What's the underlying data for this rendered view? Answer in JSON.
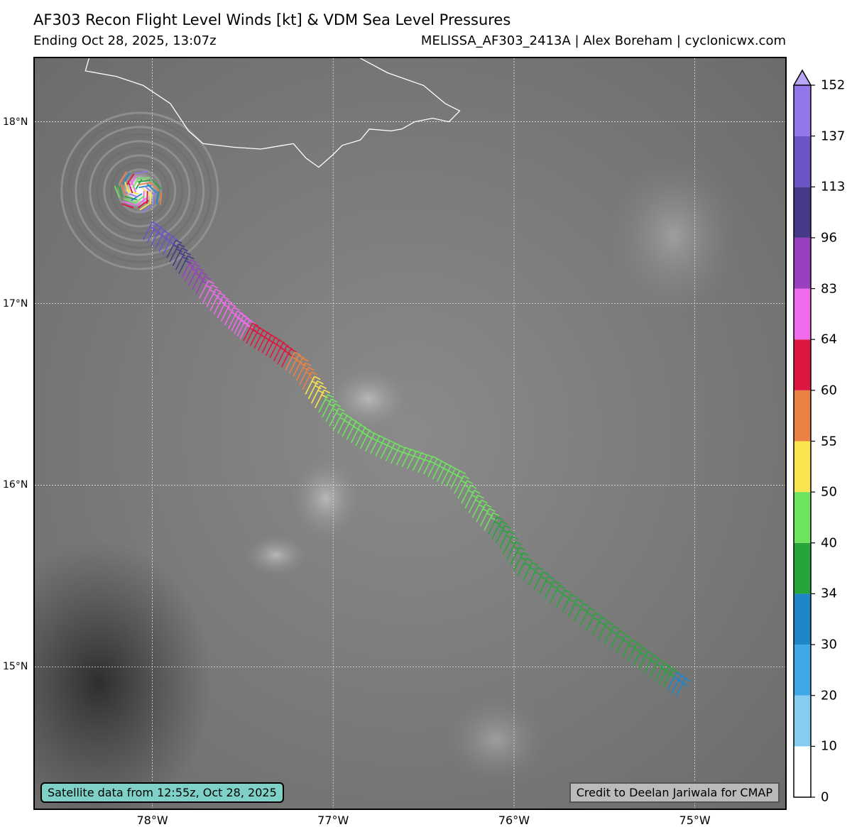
{
  "header": {
    "title": "AF303 Recon Flight Level Winds [kt] & VDM Sea Level Pressures",
    "subtitle": "Ending Oct 28, 2025, 13:07z",
    "credit": "MELISSA_AF303_2413A | Alex Boreham | cyclonicwx.com"
  },
  "map": {
    "extent": {
      "lon_min": -78.65,
      "lon_max": -74.5,
      "lat_min": 14.22,
      "lat_max": 18.35
    },
    "x_ticks": [
      {
        "lon": -78,
        "label": "78°W"
      },
      {
        "lon": -77,
        "label": "77°W"
      },
      {
        "lon": -76,
        "label": "76°W"
      },
      {
        "lon": -75,
        "label": "75°W"
      }
    ],
    "y_ticks": [
      {
        "lat": 18,
        "label": "18°N"
      },
      {
        "lat": 17,
        "label": "17°N"
      },
      {
        "lat": 16,
        "label": "16°N"
      },
      {
        "lat": 15,
        "label": "15°N"
      }
    ],
    "satellite_note": "Satellite data from 12:55z, Oct 28, 2025",
    "cmap_note": "Credit to Deelan Jariwala for CMAP",
    "eye": {
      "lon": -78.07,
      "lat": 17.62
    },
    "coastline_jamaica": [
      [
        -78.35,
        18.35
      ],
      [
        -78.37,
        18.28
      ],
      [
        -78.2,
        18.25
      ],
      [
        -78.05,
        18.2
      ],
      [
        -77.9,
        18.1
      ],
      [
        -77.8,
        17.95
      ],
      [
        -77.72,
        17.88
      ],
      [
        -77.55,
        17.86
      ],
      [
        -77.4,
        17.85
      ],
      [
        -77.22,
        17.88
      ],
      [
        -77.15,
        17.8
      ],
      [
        -77.08,
        17.75
      ],
      [
        -77.0,
        17.82
      ],
      [
        -76.95,
        17.87
      ],
      [
        -76.85,
        17.9
      ],
      [
        -76.8,
        17.96
      ],
      [
        -76.68,
        17.95
      ],
      [
        -76.62,
        17.96
      ],
      [
        -76.55,
        18.0
      ],
      [
        -76.45,
        18.02
      ],
      [
        -76.36,
        18.0
      ],
      [
        -76.3,
        18.06
      ],
      [
        -76.38,
        18.1
      ],
      [
        -76.5,
        18.2
      ],
      [
        -76.7,
        18.27
      ],
      [
        -76.85,
        18.35
      ]
    ],
    "track": [
      {
        "lon": -78.05,
        "lat": 17.35,
        "kt": 130
      },
      {
        "lon": -77.92,
        "lat": 17.25,
        "kt": 110
      },
      {
        "lon": -77.82,
        "lat": 17.12,
        "kt": 92
      },
      {
        "lon": -77.7,
        "lat": 16.98,
        "kt": 78
      },
      {
        "lon": -77.58,
        "lat": 16.86,
        "kt": 72
      },
      {
        "lon": -77.48,
        "lat": 16.78,
        "kt": 62
      },
      {
        "lon": -77.35,
        "lat": 16.7,
        "kt": 62
      },
      {
        "lon": -77.22,
        "lat": 16.6,
        "kt": 58
      },
      {
        "lon": -77.12,
        "lat": 16.45,
        "kt": 52
      },
      {
        "lon": -77.0,
        "lat": 16.3,
        "kt": 45
      },
      {
        "lon": -76.85,
        "lat": 16.2,
        "kt": 44
      },
      {
        "lon": -76.68,
        "lat": 16.12,
        "kt": 44
      },
      {
        "lon": -76.5,
        "lat": 16.06,
        "kt": 44
      },
      {
        "lon": -76.35,
        "lat": 15.98,
        "kt": 43
      },
      {
        "lon": -76.23,
        "lat": 15.82,
        "kt": 42
      },
      {
        "lon": -76.1,
        "lat": 15.68,
        "kt": 38
      },
      {
        "lon": -75.98,
        "lat": 15.5,
        "kt": 37
      },
      {
        "lon": -75.8,
        "lat": 15.35,
        "kt": 38
      },
      {
        "lon": -75.6,
        "lat": 15.2,
        "kt": 36
      },
      {
        "lon": -75.4,
        "lat": 15.05,
        "kt": 37
      },
      {
        "lon": -75.22,
        "lat": 14.92,
        "kt": 35
      },
      {
        "lon": -75.08,
        "lat": 14.82,
        "kt": 32
      }
    ],
    "colors": {
      "frame": "#000000",
      "grid": "#e0e0e0",
      "coast": "#ffffff",
      "sat_note_bg": "#7fd1c7"
    }
  },
  "colorbar": {
    "levels": [
      0,
      10,
      20,
      30,
      34,
      40,
      50,
      55,
      60,
      64,
      83,
      96,
      113,
      137,
      152
    ],
    "labels": [
      "0",
      "10",
      "20",
      "30",
      "34",
      "40",
      "50",
      "55",
      "60",
      "64",
      "83",
      "96",
      "113",
      "137",
      "152"
    ],
    "colors": [
      "#ffffff",
      "#85cdf0",
      "#3ea9e6",
      "#1f87c8",
      "#26a63a",
      "#6ee35e",
      "#fbe54e",
      "#ec8144",
      "#dd1840",
      "#ef6bec",
      "#9b3fc1",
      "#463b8b",
      "#6d55c7",
      "#9277ea"
    ],
    "extend_color": "#b8a6f4"
  }
}
